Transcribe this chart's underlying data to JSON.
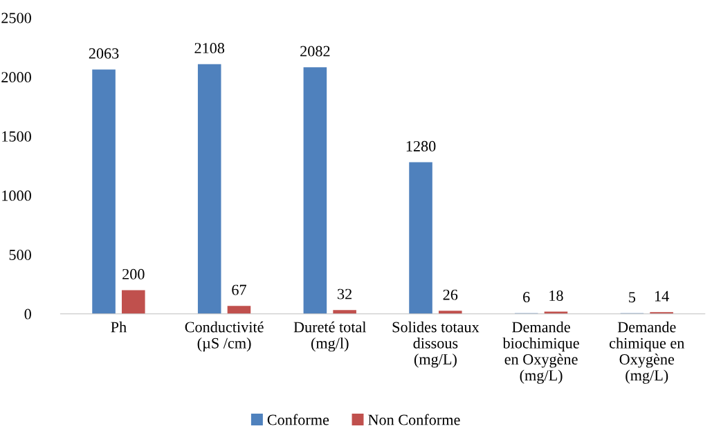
{
  "chart_data": {
    "type": "bar",
    "categories": [
      "Ph",
      "Conductivité\n(µS /cm)",
      "Dureté total\n(mg/l)",
      "Solides totaux\ndissous\n(mg/L)",
      "Demande\nbiochimique\nen Oxygène\n(mg/L)",
      "Demande\nchimique en\nOxygène\n(mg/L)"
    ],
    "series": [
      {
        "name": "Conforme",
        "color": "#4f81bd",
        "values": [
          2063,
          2108,
          2082,
          1280,
          6,
          5
        ]
      },
      {
        "name": "Non Conforme",
        "color": "#c0504d",
        "values": [
          200,
          67,
          32,
          26,
          18,
          14
        ]
      }
    ],
    "ylim": [
      0,
      2500
    ],
    "yticks": [
      0,
      500,
      1000,
      1500,
      2000,
      2500
    ],
    "data_labels": true,
    "grid": false,
    "legend": "bottom"
  }
}
